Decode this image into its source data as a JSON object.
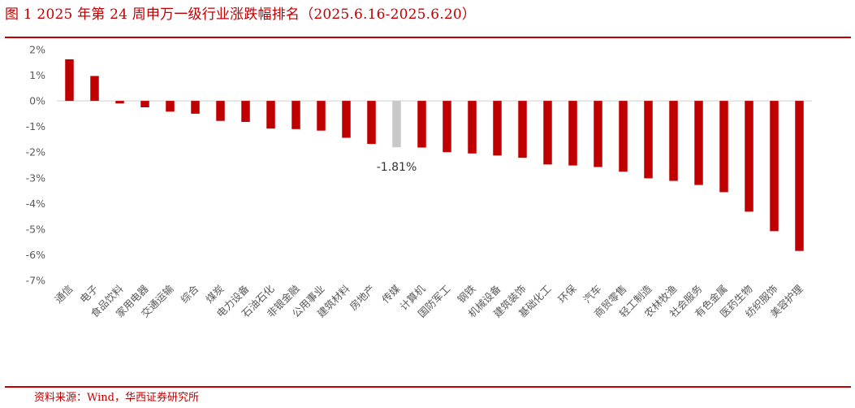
{
  "header": {
    "title": "图 1 2025 年第 24 周申万一级行业涨跌幅排名（2025.6.16-2025.6.20）"
  },
  "footer": {
    "source": "资料来源：Wind，华西证券研究所"
  },
  "colors": {
    "bar": "#c00000",
    "highlight": "#c8c8c8",
    "axis": "#d9d9d9",
    "text": "#595959",
    "accent": "#c00000"
  },
  "chart_data": {
    "type": "bar",
    "categories": [
      "通信",
      "电子",
      "食品饮料",
      "家用电器",
      "交通运输",
      "综合",
      "煤炭",
      "电力设备",
      "石油石化",
      "非银金融",
      "公用事业",
      "建筑材料",
      "房地产",
      "传媒",
      "计算机",
      "国防军工",
      "钢铁",
      "机械设备",
      "建筑装饰",
      "基础化工",
      "环保",
      "汽车",
      "商贸零售",
      "轻工制造",
      "农林牧渔",
      "社会服务",
      "有色金属",
      "医药生物",
      "纺织服饰",
      "美容护理"
    ],
    "values": [
      1.62,
      0.97,
      -0.1,
      -0.25,
      -0.42,
      -0.5,
      -0.78,
      -0.82,
      -1.08,
      -1.1,
      -1.16,
      -1.44,
      -1.68,
      -1.81,
      -1.82,
      -2.0,
      -2.05,
      -2.13,
      -2.22,
      -2.48,
      -2.52,
      -2.58,
      -2.76,
      -3.02,
      -3.12,
      -3.28,
      -3.56,
      -4.32,
      -5.08,
      -5.85
    ],
    "highlight_index": 13,
    "data_labels": [
      {
        "index": 13,
        "text": "-1.81%"
      }
    ],
    "yticks": [
      "2%",
      "1%",
      "0%",
      "-1%",
      "-2%",
      "-3%",
      "-4%",
      "-5%",
      "-6%",
      "-7%"
    ],
    "ylim": [
      -7,
      2
    ],
    "title": "",
    "xlabel": "",
    "ylabel": "",
    "grid": false,
    "legend": "none"
  }
}
